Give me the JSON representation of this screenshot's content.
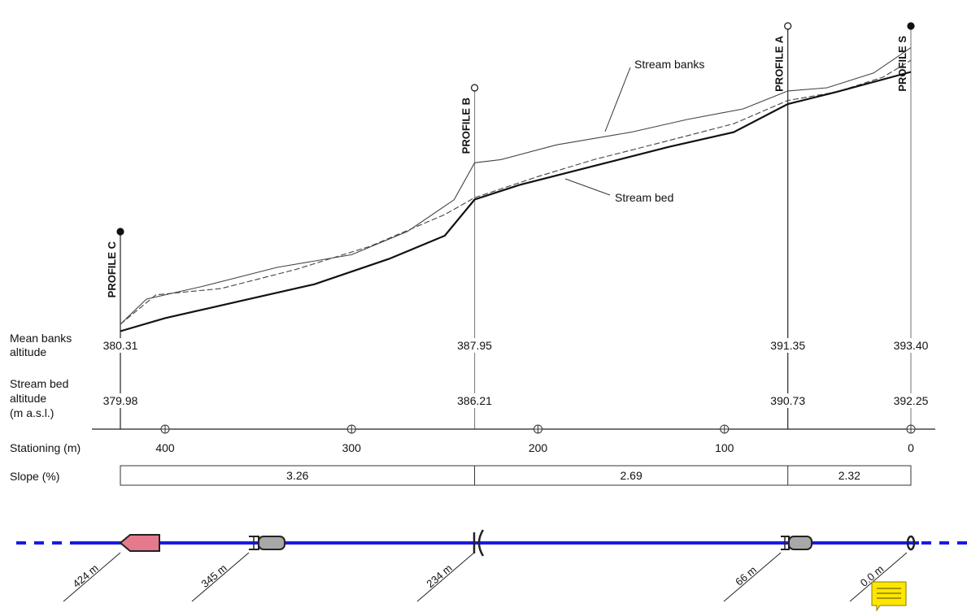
{
  "profiles": [
    {
      "name": "PROFILE C",
      "station": 424,
      "marker": "filled"
    },
    {
      "name": "PROFILE B",
      "station": 234,
      "marker": "open"
    },
    {
      "name": "PROFILE A",
      "station": 66,
      "marker": "open"
    },
    {
      "name": "PROFILE S",
      "station": 0,
      "marker": "filled"
    }
  ],
  "annotations": {
    "banks": "Stream banks",
    "bed": "Stream bed"
  },
  "rows": {
    "mean_banks": [
      "Mean banks",
      "altitude"
    ],
    "bed_altitude": [
      "Stream bed",
      "altitude",
      "(m a.s.l.)"
    ],
    "stationing": "Stationing (m)",
    "slope": "Slope (%)"
  },
  "mean_banks_values": [
    "380.31",
    "387.95",
    "391.35",
    "393.40"
  ],
  "bed_values": [
    "379.98",
    "386.21",
    "390.73",
    "392.25"
  ],
  "stationing_ticks": [
    "400",
    "300",
    "200",
    "100",
    "0"
  ],
  "slopes": [
    "3.26",
    "2.69",
    "2.32"
  ],
  "structures": [
    {
      "label": "424 m",
      "kind": "outlet"
    },
    {
      "label": "345 m",
      "kind": "culvert"
    },
    {
      "label": "234 m",
      "kind": "bridge"
    },
    {
      "label": "66 m",
      "kind": "culvert"
    },
    {
      "label": "0.0 m",
      "kind": "source"
    }
  ],
  "colors": {
    "channel": "#1a1ae6",
    "outlet_fill": "#e57a8c",
    "culvert_fill": "#a8a8a8",
    "note": "#ffe600"
  },
  "chart_data": {
    "type": "line",
    "xlabel": "Stationing (m)",
    "ylabel": "",
    "xlim": [
      424,
      0
    ],
    "ylim": [
      379.5,
      394.5
    ],
    "series": [
      {
        "name": "Stream banks",
        "points": [
          [
            424,
            380.31
          ],
          [
            410,
            381.5
          ],
          [
            380,
            382.1
          ],
          [
            340,
            383.0
          ],
          [
            300,
            383.6
          ],
          [
            270,
            384.7
          ],
          [
            245,
            386.2
          ],
          [
            234,
            387.95
          ],
          [
            220,
            388.1
          ],
          [
            190,
            388.8
          ],
          [
            150,
            389.4
          ],
          [
            120,
            390.0
          ],
          [
            90,
            390.5
          ],
          [
            66,
            391.35
          ],
          [
            45,
            391.5
          ],
          [
            20,
            392.2
          ],
          [
            0,
            393.4
          ]
        ]
      },
      {
        "name": "Stream banks",
        "points": [
          [
            424,
            380.31
          ],
          [
            405,
            381.7
          ],
          [
            370,
            382.0
          ],
          [
            330,
            382.9
          ],
          [
            290,
            384.0
          ],
          [
            250,
            385.5
          ],
          [
            234,
            386.3
          ],
          [
            200,
            387.3
          ],
          [
            170,
            388.1
          ],
          [
            130,
            389.0
          ],
          [
            95,
            389.8
          ],
          [
            66,
            390.9
          ],
          [
            40,
            391.3
          ],
          [
            15,
            392.0
          ],
          [
            0,
            392.8
          ]
        ]
      },
      {
        "name": "Stream bed",
        "points": [
          [
            424,
            379.98
          ],
          [
            400,
            380.6
          ],
          [
            360,
            381.4
          ],
          [
            320,
            382.2
          ],
          [
            280,
            383.4
          ],
          [
            250,
            384.5
          ],
          [
            234,
            386.21
          ],
          [
            210,
            386.9
          ],
          [
            170,
            387.8
          ],
          [
            130,
            388.7
          ],
          [
            95,
            389.4
          ],
          [
            66,
            390.73
          ],
          [
            40,
            391.3
          ],
          [
            0,
            392.25
          ]
        ]
      }
    ]
  }
}
